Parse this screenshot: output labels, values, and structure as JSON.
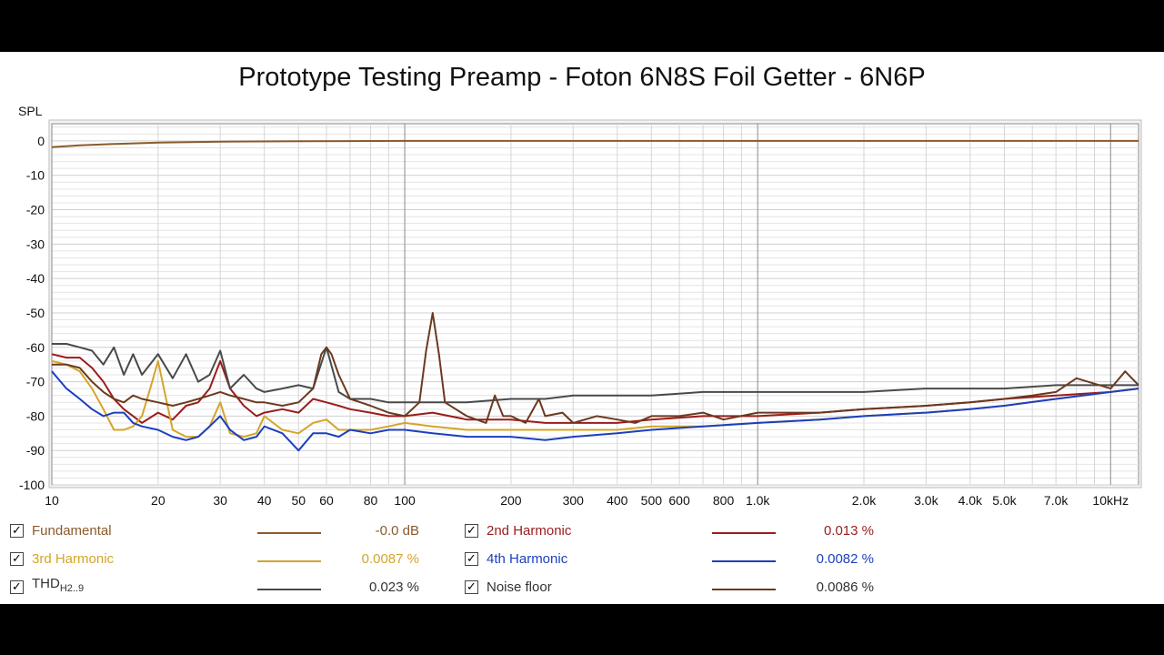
{
  "chart_data": {
    "type": "line",
    "title": "Prototype Testing Preamp - Foton 6N8S Foil Getter - 6N6P",
    "ylabel": "SPL",
    "xlabel": "",
    "x_scale": "log",
    "xlim": [
      10,
      12000
    ],
    "ylim": [
      -100,
      5
    ],
    "grid": true,
    "y_ticks": [
      "0",
      "-10",
      "-20",
      "-30",
      "-40",
      "-50",
      "-60",
      "-70",
      "-80",
      "-90",
      "-100"
    ],
    "x_ticks": [
      {
        "v": 10,
        "t": "10"
      },
      {
        "v": 20,
        "t": "20"
      },
      {
        "v": 30,
        "t": "30"
      },
      {
        "v": 40,
        "t": "40"
      },
      {
        "v": 50,
        "t": "50"
      },
      {
        "v": 60,
        "t": "60"
      },
      {
        "v": 80,
        "t": "80"
      },
      {
        "v": 100,
        "t": "100"
      },
      {
        "v": 200,
        "t": "200"
      },
      {
        "v": 300,
        "t": "300"
      },
      {
        "v": 400,
        "t": "400"
      },
      {
        "v": 500,
        "t": "500"
      },
      {
        "v": 600,
        "t": "600"
      },
      {
        "v": 800,
        "t": "800"
      },
      {
        "v": 1000,
        "t": "1.0k"
      },
      {
        "v": 2000,
        "t": "2.0k"
      },
      {
        "v": 3000,
        "t": "3.0k"
      },
      {
        "v": 4000,
        "t": "4.0k"
      },
      {
        "v": 5000,
        "t": "5.0k"
      },
      {
        "v": 7000,
        "t": "7.0k"
      },
      {
        "v": 10000,
        "t": "10kHz"
      }
    ],
    "series": [
      {
        "name": "Fundamental",
        "color": "#8b5a2b",
        "x": [
          10,
          12,
          15,
          20,
          30,
          50,
          100,
          1000,
          12000
        ],
        "y": [
          -1.8,
          -1.3,
          -0.9,
          -0.5,
          -0.2,
          -0.1,
          0,
          0,
          0
        ]
      },
      {
        "name": "2nd Harmonic",
        "color": "#9b1c1c",
        "x": [
          10,
          11,
          12,
          13,
          14,
          15,
          16,
          17,
          18,
          20,
          22,
          24,
          26,
          28,
          30,
          32,
          35,
          38,
          40,
          45,
          50,
          55,
          60,
          65,
          70,
          80,
          90,
          100,
          120,
          150,
          200,
          250,
          300,
          400,
          500,
          700,
          1000,
          1500,
          2000,
          3000,
          4000,
          5000,
          7000,
          10000,
          12000
        ],
        "y": [
          -62,
          -63,
          -63,
          -66,
          -70,
          -75,
          -78,
          -80,
          -82,
          -79,
          -81,
          -77,
          -76,
          -72,
          -64,
          -72,
          -77,
          -80,
          -79,
          -78,
          -79,
          -75,
          -76,
          -77,
          -78,
          -79,
          -80,
          -80,
          -79,
          -81,
          -81,
          -82,
          -82,
          -82,
          -81,
          -80,
          -80,
          -79,
          -78,
          -77,
          -76,
          -75,
          -74,
          -73,
          -72
        ]
      },
      {
        "name": "3rd Harmonic",
        "color": "#d4a52a",
        "x": [
          10,
          11,
          12,
          13,
          14,
          15,
          16,
          17,
          18,
          19,
          20,
          22,
          24,
          26,
          28,
          30,
          32,
          35,
          38,
          40,
          45,
          50,
          55,
          60,
          65,
          70,
          80,
          90,
          100,
          120,
          150,
          200,
          250,
          300,
          400,
          500,
          700,
          1000,
          1500,
          2000,
          3000,
          4000,
          5000,
          7000,
          10000,
          12000
        ],
        "y": [
          -64,
          -65,
          -67,
          -72,
          -78,
          -84,
          -84,
          -83,
          -80,
          -72,
          -64,
          -84,
          -86,
          -86,
          -83,
          -76,
          -85,
          -86,
          -85,
          -80,
          -84,
          -85,
          -82,
          -81,
          -84,
          -84,
          -84,
          -83,
          -82,
          -83,
          -84,
          -84,
          -84,
          -84,
          -84,
          -83,
          -83,
          -82,
          -81,
          -80,
          -79,
          -78,
          -77,
          -75,
          -73,
          -72
        ]
      },
      {
        "name": "4th Harmonic",
        "color": "#1c3fbf",
        "x": [
          10,
          11,
          12,
          13,
          14,
          15,
          16,
          17,
          18,
          20,
          22,
          24,
          26,
          28,
          30,
          32,
          35,
          38,
          40,
          45,
          50,
          55,
          60,
          65,
          70,
          80,
          90,
          100,
          120,
          150,
          200,
          250,
          300,
          400,
          500,
          700,
          1000,
          1500,
          2000,
          3000,
          4000,
          5000,
          7000,
          10000,
          12000
        ],
        "y": [
          -67,
          -72,
          -75,
          -78,
          -80,
          -79,
          -79,
          -82,
          -83,
          -84,
          -86,
          -87,
          -86,
          -83,
          -80,
          -84,
          -87,
          -86,
          -83,
          -85,
          -90,
          -85,
          -85,
          -86,
          -84,
          -85,
          -84,
          -84,
          -85,
          -86,
          -86,
          -87,
          -86,
          -85,
          -84,
          -83,
          -82,
          -81,
          -80,
          -79,
          -78,
          -77,
          -75,
          -73,
          -72
        ]
      },
      {
        "name": "THD",
        "color": "#4a4a4a",
        "x": [
          10,
          11,
          12,
          13,
          14,
          15,
          16,
          17,
          18,
          20,
          22,
          24,
          26,
          28,
          30,
          32,
          35,
          38,
          40,
          45,
          50,
          55,
          60,
          65,
          70,
          80,
          90,
          100,
          120,
          150,
          200,
          250,
          300,
          400,
          500,
          700,
          1000,
          1500,
          2000,
          3000,
          4000,
          5000,
          7000,
          10000,
          12000
        ],
        "y": [
          -59,
          -59,
          -60,
          -61,
          -65,
          -60,
          -68,
          -62,
          -68,
          -62,
          -69,
          -62,
          -70,
          -68,
          -61,
          -72,
          -68,
          -72,
          -73,
          -72,
          -71,
          -72,
          -60,
          -73,
          -75,
          -75,
          -76,
          -76,
          -76,
          -76,
          -75,
          -75,
          -74,
          -74,
          -74,
          -73,
          -73,
          -73,
          -73,
          -72,
          -72,
          -72,
          -71,
          -71,
          -71
        ]
      },
      {
        "name": "Noise floor",
        "color": "#6b3a1f",
        "x": [
          10,
          11,
          12,
          13,
          14,
          15,
          16,
          17,
          18,
          20,
          22,
          24,
          26,
          28,
          30,
          32,
          35,
          38,
          40,
          45,
          50,
          55,
          58,
          60,
          62,
          65,
          70,
          75,
          80,
          90,
          100,
          110,
          115,
          120,
          125,
          130,
          150,
          170,
          180,
          190,
          200,
          220,
          240,
          250,
          280,
          300,
          350,
          400,
          450,
          500,
          600,
          700,
          800,
          1000,
          1500,
          2000,
          3000,
          4000,
          5000,
          6000,
          7000,
          8000,
          10000,
          11000,
          12000
        ],
        "y": [
          -65,
          -65,
          -66,
          -70,
          -73,
          -75,
          -76,
          -74,
          -75,
          -76,
          -77,
          -76,
          -75,
          -74,
          -73,
          -74,
          -75,
          -76,
          -76,
          -77,
          -76,
          -72,
          -62,
          -60,
          -62,
          -68,
          -75,
          -76,
          -77,
          -79,
          -80,
          -76,
          -61,
          -50,
          -62,
          -76,
          -80,
          -82,
          -74,
          -80,
          -80,
          -82,
          -75,
          -80,
          -79,
          -82,
          -80,
          -81,
          -82,
          -80,
          -80,
          -79,
          -81,
          -79,
          -79,
          -78,
          -77,
          -76,
          -75,
          -74,
          -73,
          -69,
          -72,
          -67,
          -71
        ]
      }
    ]
  },
  "legend": [
    {
      "label": "Fundamental",
      "sub": "",
      "value": "-0.0 dB",
      "color": "#8b5a2b",
      "text_color": "#8b5a2b",
      "checked": "✓"
    },
    {
      "label": "2nd Harmonic",
      "sub": "",
      "value": "0.013 %",
      "color": "#9b1c1c",
      "text_color": "#9b1c1c",
      "checked": "✓"
    },
    {
      "label": "3rd Harmonic",
      "sub": "",
      "value": "0.0087 %",
      "color": "#d4a52a",
      "text_color": "#d4a52a",
      "checked": "✓"
    },
    {
      "label": "4th Harmonic",
      "sub": "",
      "value": "0.0082 %",
      "color": "#1c3fbf",
      "text_color": "#1c3fbf",
      "checked": "✓"
    },
    {
      "label": "THD",
      "sub": "H2..9",
      "value": "0.023 %",
      "color": "#4a4a4a",
      "text_color": "#333333",
      "checked": "✓"
    },
    {
      "label": "Noise floor",
      "sub": "",
      "value": "0.0086 %",
      "color": "#6b3a1f",
      "text_color": "#333333",
      "checked": "✓"
    }
  ]
}
